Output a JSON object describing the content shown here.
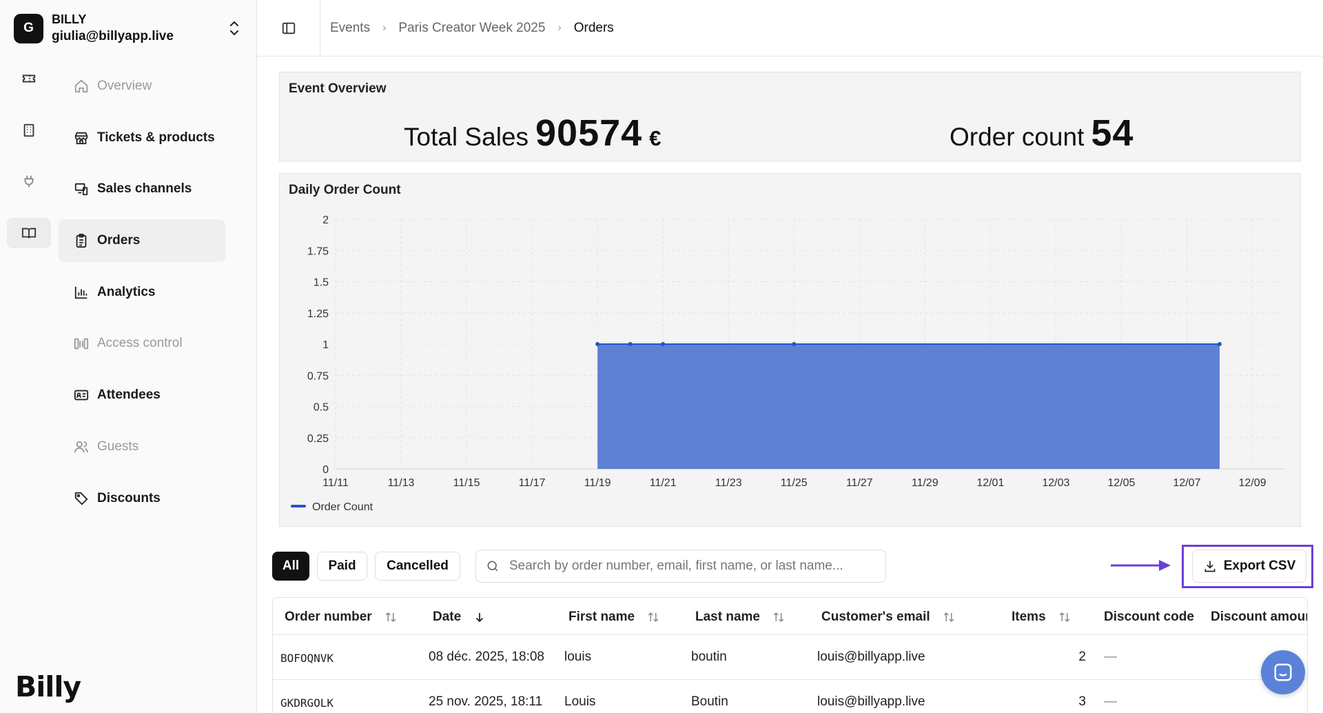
{
  "account": {
    "avatar_letter": "G",
    "name": "BILLY",
    "email": "giulia@billyapp.live"
  },
  "rail": [
    {
      "icon": "ticket-icon"
    },
    {
      "icon": "building-icon"
    },
    {
      "icon": "plug-icon"
    },
    {
      "icon": "book-icon",
      "active": true
    }
  ],
  "nav": [
    {
      "label": "Overview",
      "icon": "home-icon",
      "state": "disabled"
    },
    {
      "label": "Tickets & products",
      "icon": "store-icon",
      "state": "normal"
    },
    {
      "label": "Sales channels",
      "icon": "devices-icon",
      "state": "normal"
    },
    {
      "label": "Orders",
      "icon": "clipboard-icon",
      "state": "active"
    },
    {
      "label": "Analytics",
      "icon": "bar-chart-icon",
      "state": "normal"
    },
    {
      "label": "Access control",
      "icon": "turnstile-icon",
      "state": "disabled"
    },
    {
      "label": "Attendees",
      "icon": "id-card-icon",
      "state": "normal"
    },
    {
      "label": "Guests",
      "icon": "users-icon",
      "state": "disabled"
    },
    {
      "label": "Discounts",
      "icon": "tag-icon",
      "state": "normal"
    }
  ],
  "logo": "Billy",
  "breadcrumb": [
    "Events",
    "Paris Creator Week 2025",
    "Orders"
  ],
  "overview": {
    "title": "Event Overview",
    "total_sales_label": "Total Sales",
    "total_sales_value": "90574",
    "currency": "€",
    "order_count_label": "Order count",
    "order_count_value": "54"
  },
  "chart_title": "Daily Order Count",
  "chart_data": {
    "type": "area",
    "x_ticks": [
      "11/11",
      "11/13",
      "11/15",
      "11/17",
      "11/19",
      "11/21",
      "11/23",
      "11/25",
      "11/27",
      "11/29",
      "12/01",
      "12/03",
      "12/05",
      "12/07",
      "12/09"
    ],
    "y_ticks": [
      "0",
      "0.25",
      "0.5",
      "0.75",
      "1",
      "1.25",
      "1.5",
      "1.75",
      "2"
    ],
    "ylim": [
      0,
      2
    ],
    "grid": true,
    "legend_position": "bottom-left",
    "series": [
      {
        "name": "Order Count",
        "color": "#2554c7",
        "points": [
          {
            "x": "2025-11-19",
            "y": 1
          },
          {
            "x": "2025-11-20",
            "y": 1
          },
          {
            "x": "2025-11-21",
            "y": 1
          },
          {
            "x": "2025-11-25",
            "y": 1
          },
          {
            "x": "2025-12-08",
            "y": 1
          }
        ]
      }
    ]
  },
  "filters": [
    {
      "label": "All",
      "active": true
    },
    {
      "label": "Paid",
      "active": false
    },
    {
      "label": "Cancelled",
      "active": false
    }
  ],
  "search": {
    "placeholder": "Search by order number, email, first name, or last name...",
    "value": ""
  },
  "export_label": "Export CSV",
  "highlight_color": "#6a3fd6",
  "table": {
    "columns": [
      "Order number",
      "Date",
      "First name",
      "Last name",
      "Customer's email",
      "Items",
      "Discount code",
      "Discount amour"
    ],
    "rows": [
      {
        "order": "BOFOQNVK",
        "date": "08 déc. 2025, 18:08",
        "first": "louis",
        "last": "boutin",
        "email": "louis@billyapp.live",
        "items": "2",
        "discount": "—"
      },
      {
        "order": "GKDRGOLK",
        "date": "25 nov. 2025, 18:11",
        "first": "Louis",
        "last": "Boutin",
        "email": "louis@billyapp.live",
        "items": "3",
        "discount": "—"
      }
    ]
  }
}
